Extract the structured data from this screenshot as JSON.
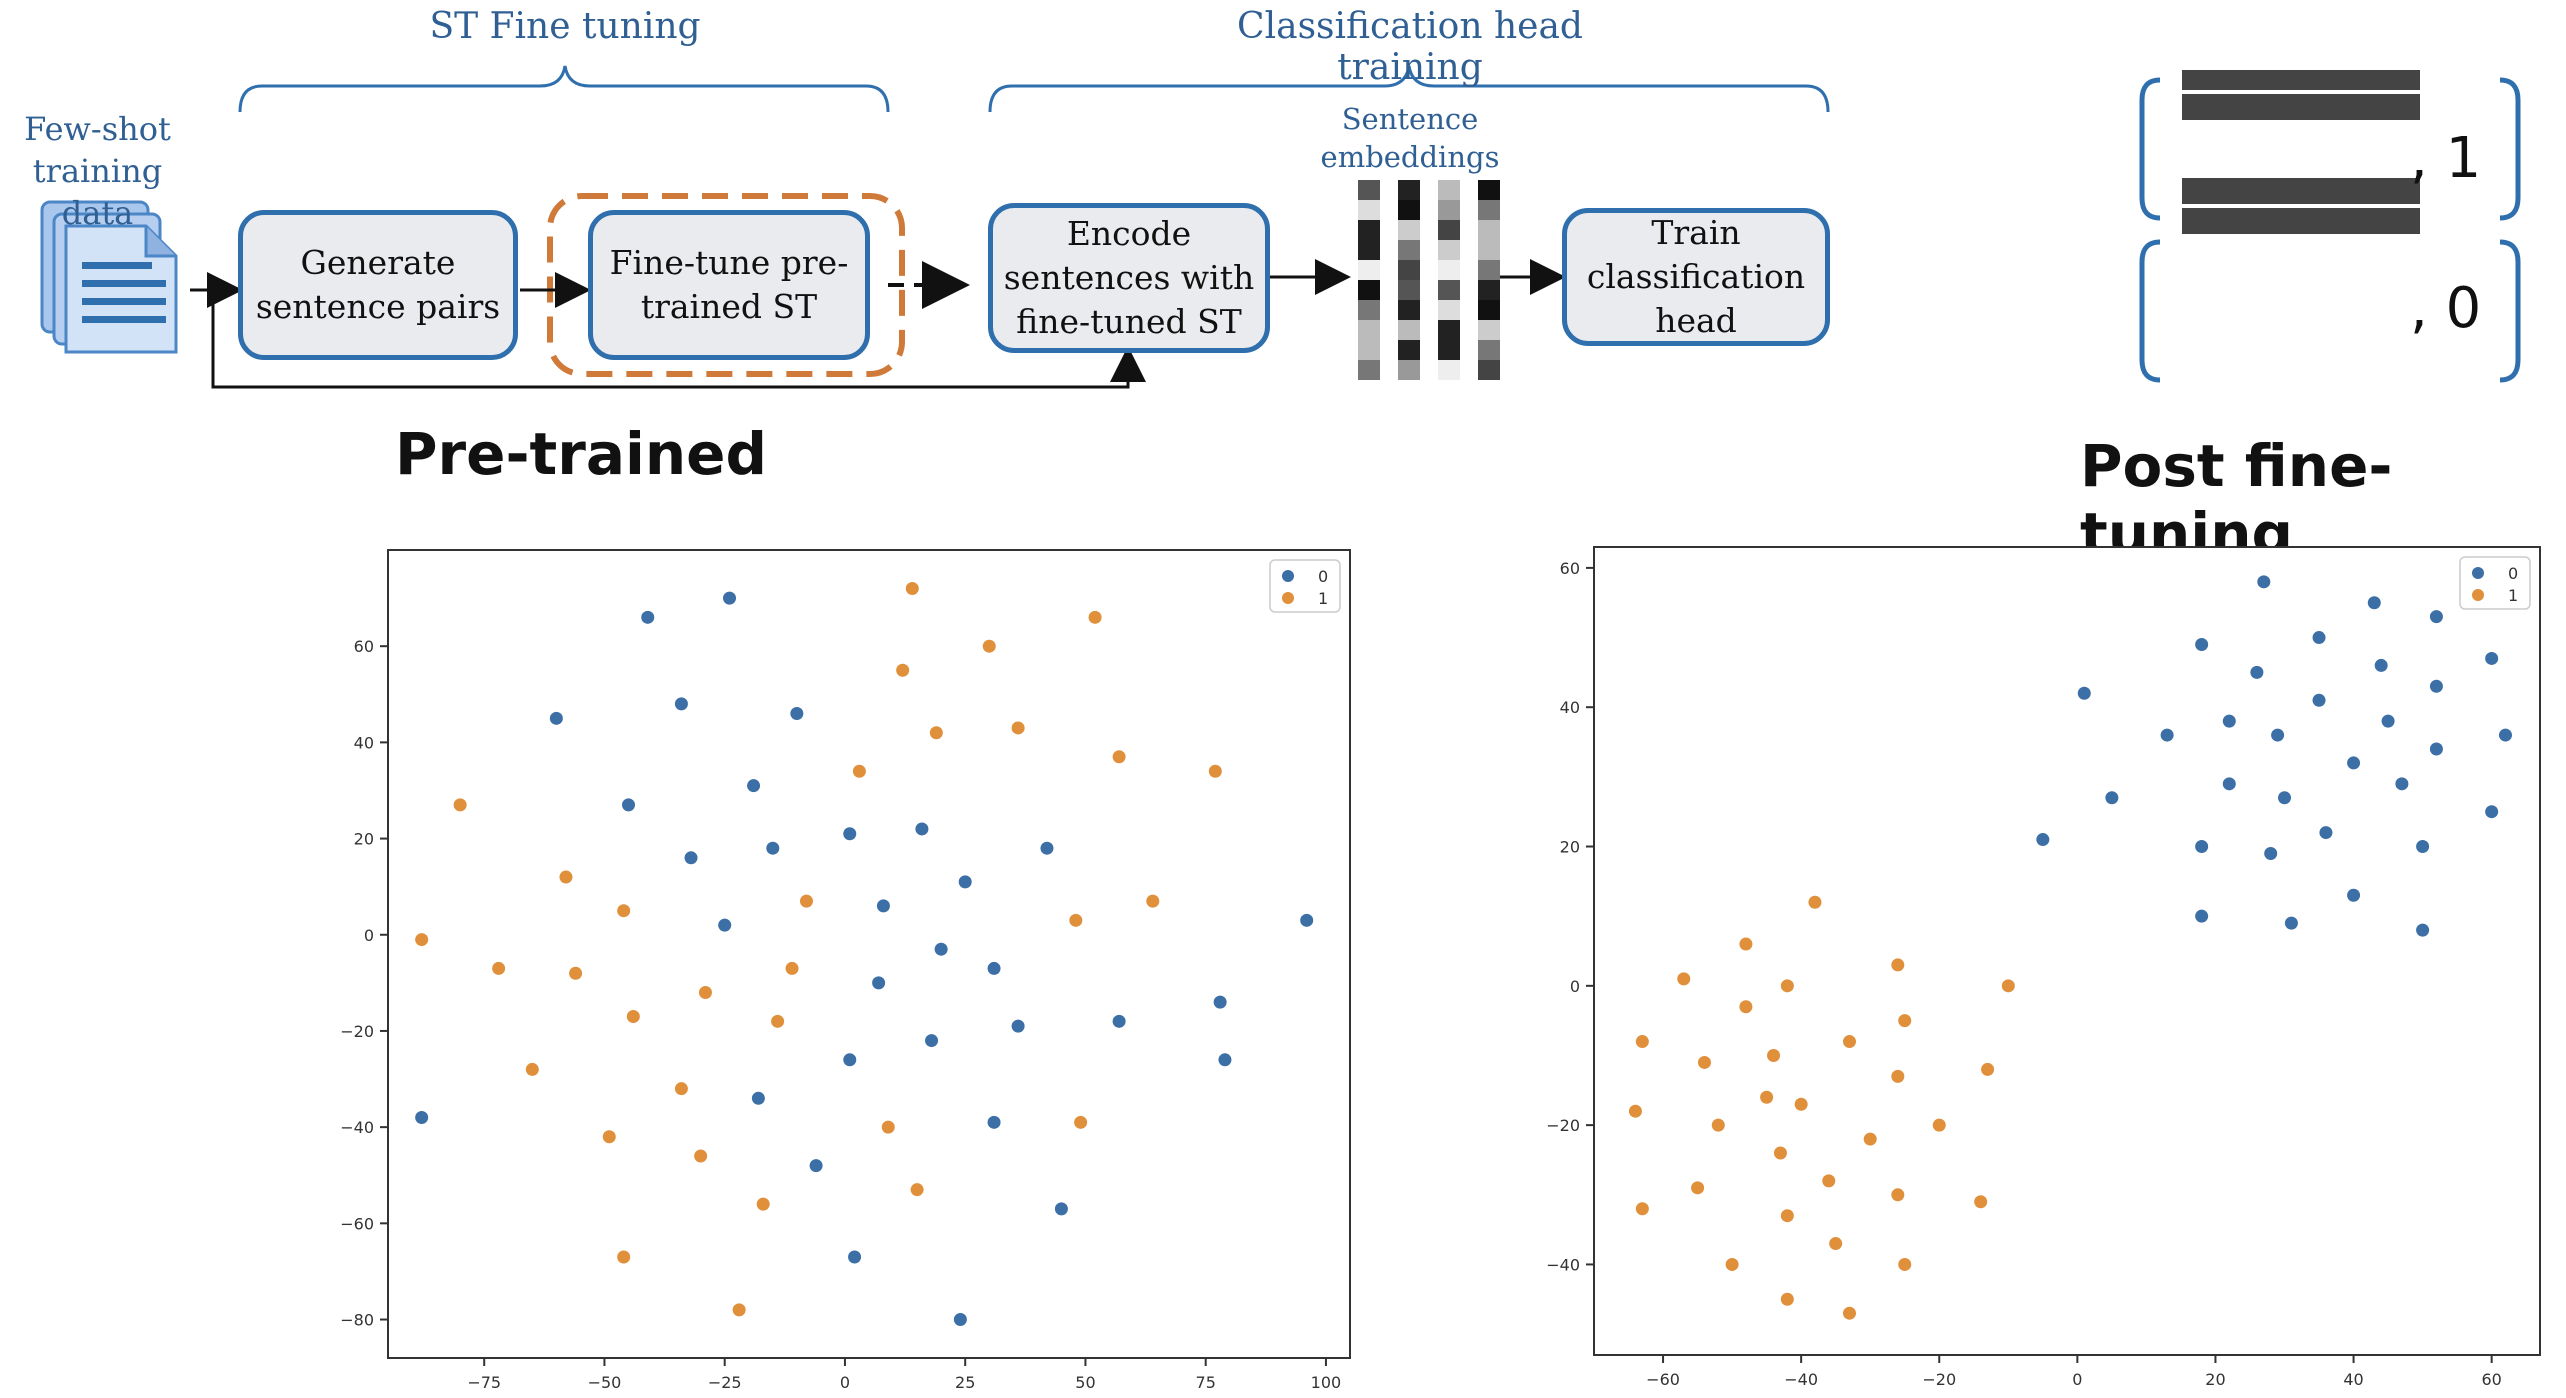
{
  "pipeline": {
    "group_st": "ST Fine tuning",
    "group_head": "Classification head training",
    "input_label": "Few-shot\ntraining data",
    "embeddings_label": "Sentence\nembeddings",
    "box_generate": "Generate\nsentence pairs",
    "box_finetune": "Fine-tune pre-\ntrained ST",
    "box_encode": "Encode\nsentences with\nfine-tuned ST",
    "box_train": "Train\nclassification\nhead"
  },
  "examples": [
    {
      "label": ", 1"
    },
    {
      "label": ", 0"
    }
  ],
  "titles": {
    "pretrained": "Pre-trained",
    "post": "Post fine-tuning"
  },
  "colors": {
    "box_border": "#2f6fad",
    "box_fill": "#e9ebee",
    "dash_highlight": "#d07a3a",
    "class0": "#3b6fa6",
    "class1": "#e08f3b"
  },
  "chart_data": [
    {
      "type": "scatter",
      "title": "Pre-trained",
      "xlabel": "",
      "ylabel": "",
      "xlim": [
        -95,
        105
      ],
      "ylim": [
        -88,
        80
      ],
      "xticks": [
        -75,
        -50,
        -25,
        0,
        25,
        50,
        75,
        100
      ],
      "yticks": [
        -80,
        -60,
        -40,
        -20,
        0,
        20,
        40,
        60
      ],
      "legend": "top-right",
      "grid": false,
      "series": [
        {
          "name": "0",
          "color": "#3b6fa6",
          "points": [
            [
              -41,
              66
            ],
            [
              -24,
              70
            ],
            [
              -60,
              45
            ],
            [
              -34,
              48
            ],
            [
              -10,
              46
            ],
            [
              -19,
              31
            ],
            [
              -45,
              27
            ],
            [
              -32,
              16
            ],
            [
              -15,
              18
            ],
            [
              1,
              21
            ],
            [
              16,
              22
            ],
            [
              42,
              18
            ],
            [
              -25,
              2
            ],
            [
              8,
              6
            ],
            [
              25,
              11
            ],
            [
              20,
              -3
            ],
            [
              31,
              -7
            ],
            [
              7,
              -10
            ],
            [
              96,
              3
            ],
            [
              36,
              -19
            ],
            [
              57,
              -18
            ],
            [
              78,
              -14
            ],
            [
              18,
              -22
            ],
            [
              1,
              -26
            ],
            [
              79,
              -26
            ],
            [
              -18,
              -34
            ],
            [
              -88,
              -38
            ],
            [
              31,
              -39
            ],
            [
              -6,
              -48
            ],
            [
              45,
              -57
            ],
            [
              2,
              -67
            ],
            [
              24,
              -80
            ]
          ]
        },
        {
          "name": "1",
          "color": "#e08f3b",
          "points": [
            [
              14,
              72
            ],
            [
              52,
              66
            ],
            [
              30,
              60
            ],
            [
              12,
              55
            ],
            [
              -80,
              27
            ],
            [
              19,
              42
            ],
            [
              36,
              43
            ],
            [
              57,
              37
            ],
            [
              77,
              34
            ],
            [
              3,
              34
            ],
            [
              -58,
              12
            ],
            [
              -46,
              5
            ],
            [
              -8,
              7
            ],
            [
              64,
              7
            ],
            [
              48,
              3
            ],
            [
              -88,
              -1
            ],
            [
              -72,
              -7
            ],
            [
              -56,
              -8
            ],
            [
              -29,
              -12
            ],
            [
              -11,
              -7
            ],
            [
              -44,
              -17
            ],
            [
              -14,
              -18
            ],
            [
              -65,
              -28
            ],
            [
              -34,
              -32
            ],
            [
              -49,
              -42
            ],
            [
              -30,
              -46
            ],
            [
              9,
              -40
            ],
            [
              49,
              -39
            ],
            [
              -17,
              -56
            ],
            [
              15,
              -53
            ],
            [
              -46,
              -67
            ],
            [
              -22,
              -78
            ]
          ]
        }
      ]
    },
    {
      "type": "scatter",
      "title": "Post fine-tuning",
      "xlabel": "",
      "ylabel": "",
      "xlim": [
        -70,
        67
      ],
      "ylim": [
        -53,
        63
      ],
      "xticks": [
        -60,
        -40,
        -20,
        0,
        20,
        40,
        60
      ],
      "yticks": [
        -40,
        -20,
        0,
        20,
        40,
        60
      ],
      "legend": "top-right",
      "grid": false,
      "series": [
        {
          "name": "0",
          "color": "#3b6fa6",
          "points": [
            [
              27,
              58
            ],
            [
              43,
              55
            ],
            [
              52,
              53
            ],
            [
              18,
              49
            ],
            [
              35,
              50
            ],
            [
              60,
              47
            ],
            [
              26,
              45
            ],
            [
              44,
              46
            ],
            [
              52,
              43
            ],
            [
              1,
              42
            ],
            [
              35,
              41
            ],
            [
              13,
              36
            ],
            [
              22,
              38
            ],
            [
              29,
              36
            ],
            [
              45,
              38
            ],
            [
              62,
              36
            ],
            [
              52,
              34
            ],
            [
              5,
              27
            ],
            [
              40,
              32
            ],
            [
              22,
              29
            ],
            [
              30,
              27
            ],
            [
              47,
              29
            ],
            [
              -5,
              21
            ],
            [
              18,
              20
            ],
            [
              28,
              19
            ],
            [
              36,
              22
            ],
            [
              50,
              20
            ],
            [
              60,
              25
            ],
            [
              18,
              10
            ],
            [
              31,
              9
            ],
            [
              40,
              13
            ],
            [
              50,
              8
            ]
          ]
        },
        {
          "name": "1",
          "color": "#e08f3b",
          "points": [
            [
              -38,
              12
            ],
            [
              -48,
              6
            ],
            [
              -26,
              3
            ],
            [
              -57,
              1
            ],
            [
              -42,
              0
            ],
            [
              -10,
              0
            ],
            [
              -63,
              -8
            ],
            [
              -48,
              -3
            ],
            [
              -33,
              -8
            ],
            [
              -25,
              -5
            ],
            [
              -54,
              -11
            ],
            [
              -44,
              -10
            ],
            [
              -13,
              -12
            ],
            [
              -26,
              -13
            ],
            [
              -64,
              -18
            ],
            [
              -52,
              -20
            ],
            [
              -40,
              -17
            ],
            [
              -45,
              -16
            ],
            [
              -20,
              -20
            ],
            [
              -43,
              -24
            ],
            [
              -30,
              -22
            ],
            [
              -55,
              -29
            ],
            [
              -36,
              -28
            ],
            [
              -63,
              -32
            ],
            [
              -42,
              -33
            ],
            [
              -26,
              -30
            ],
            [
              -14,
              -31
            ],
            [
              -50,
              -40
            ],
            [
              -35,
              -37
            ],
            [
              -25,
              -40
            ],
            [
              -42,
              -45
            ],
            [
              -33,
              -47
            ]
          ]
        }
      ]
    }
  ]
}
